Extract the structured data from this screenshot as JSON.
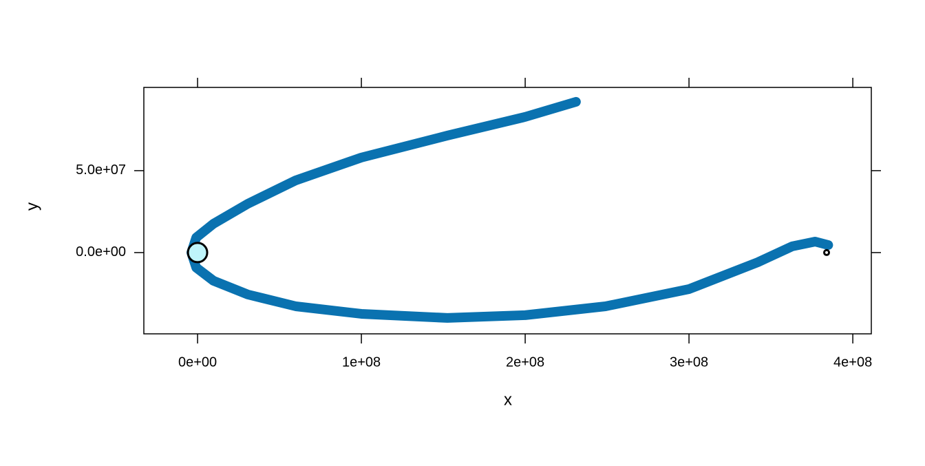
{
  "chart_data": {
    "type": "trajectory",
    "xlabel": "x",
    "ylabel": "y",
    "xlim": [
      -32800000,
      411300000
    ],
    "ylim": [
      -49600000,
      100800000
    ],
    "xticks": [
      {
        "value": 0,
        "label": "0e+00"
      },
      {
        "value": 100000000,
        "label": "1e+08"
      },
      {
        "value": 200000000,
        "label": "2e+08"
      },
      {
        "value": 300000000,
        "label": "3e+08"
      },
      {
        "value": 400000000,
        "label": "4e+08"
      }
    ],
    "yticks": [
      {
        "value": 0,
        "label": "0.0e+00"
      },
      {
        "value": 50000000,
        "label": "5.0e+07"
      }
    ],
    "series": [
      {
        "color": "#0a72b0",
        "x": [
          231000000,
          200000000,
          152500000,
          100000000,
          60000000,
          30700000,
          9700000,
          -800000,
          -3800000,
          -800000,
          9700000,
          30700000,
          60000000,
          100000000,
          152500000,
          200000000,
          249000000,
          300000000,
          342000000,
          363000000,
          377000000,
          385000000
        ],
        "y": [
          92000000,
          82800000,
          71400000,
          58000000,
          44100000,
          29800000,
          17600000,
          9200000,
          0,
          -9200000,
          -17200000,
          -25600000,
          -32800000,
          -37400000,
          -39900000,
          -38200000,
          -32800000,
          -22300000,
          -5900000,
          3800000,
          6700000,
          4600000
        ]
      }
    ],
    "points": {
      "x": [
        0,
        384000000
      ],
      "y": [
        0,
        0
      ],
      "colors": [
        "#bff5fb",
        "#ffffff"
      ]
    }
  }
}
